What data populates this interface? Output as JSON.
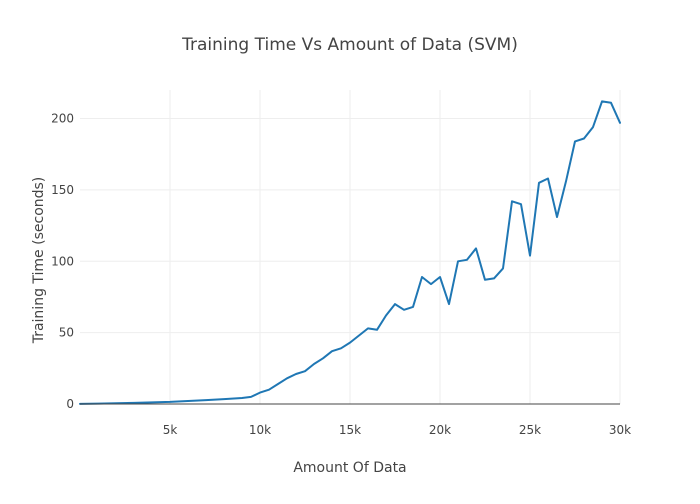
{
  "chart_data": {
    "type": "line",
    "title": "Training Time Vs Amount of Data (SVM)",
    "xlabel": "Amount Of Data",
    "ylabel": "Training Time (seconds)",
    "xlim": [
      0,
      30000
    ],
    "ylim": [
      0,
      220
    ],
    "xticks": [
      5000,
      10000,
      15000,
      20000,
      25000,
      30000
    ],
    "xtick_labels": [
      "5k",
      "10k",
      "15k",
      "20k",
      "25k",
      "30k"
    ],
    "yticks": [
      0,
      50,
      100,
      150,
      200
    ],
    "ytick_labels": [
      "0",
      "50",
      "100",
      "150",
      "200"
    ],
    "grid": true,
    "legend": "none",
    "color": "#1f77b4",
    "series": [
      {
        "x": [
          0,
          1000,
          2000,
          3000,
          4000,
          5000,
          6000,
          7000,
          8000,
          9000,
          9500,
          10000,
          10500,
          11000,
          11500,
          12000,
          12500,
          13000,
          13500,
          14000,
          14500,
          15000,
          15500,
          16000,
          16500,
          17000,
          17500,
          18000,
          18500,
          19000,
          19500,
          20000,
          20500,
          21000,
          21500,
          22000,
          22500,
          23000,
          23500,
          24000,
          24500,
          25000,
          25500,
          26000,
          26500,
          27000,
          27500,
          28000,
          28500,
          29000,
          29500,
          30000
        ],
        "y": [
          0.1,
          0.3,
          0.5,
          0.8,
          1.1,
          1.5,
          2.1,
          2.7,
          3.4,
          4.2,
          5,
          8,
          10,
          14,
          18,
          21,
          23,
          28,
          32,
          37,
          39,
          43,
          48,
          53,
          52,
          62,
          70,
          66,
          68,
          89,
          84,
          89,
          70,
          100,
          101,
          109,
          87,
          88,
          95,
          142,
          140,
          104,
          155,
          158,
          131,
          156,
          184,
          186,
          194,
          212,
          211,
          197
        ]
      }
    ]
  }
}
